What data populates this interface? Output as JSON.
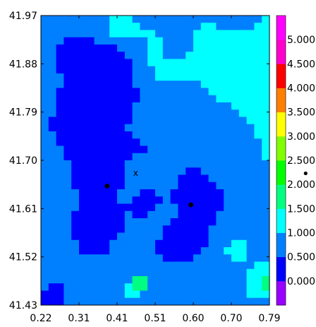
{
  "chart_data": {
    "type": "heatmap",
    "title": "",
    "xlabel": "",
    "ylabel": "",
    "x_ticks": [
      "0.22",
      "0.31",
      "0.41",
      "0.51",
      "0.60",
      "0.70",
      "0.79"
    ],
    "y_ticks": [
      "41.43",
      "41.52",
      "41.61",
      "41.70",
      "41.79",
      "41.88",
      "41.97"
    ],
    "xlim": [
      0.22,
      0.79
    ],
    "ylim": [
      41.43,
      41.97
    ],
    "grid": false,
    "colorbar": {
      "labels": [
        "0.000",
        "0.500",
        "1.000",
        "1.500",
        "2.000",
        "2.500",
        "3.000",
        "3.500",
        "4.000",
        "4.500",
        "5.000"
      ],
      "colors": [
        "#9900ff",
        "#0000ff",
        "#0080ff",
        "#00ffff",
        "#00ff80",
        "#00ff00",
        "#80ff00",
        "#ffff00",
        "#ff8000",
        "#ff0000",
        "#ff00cc",
        "#ff00ff"
      ]
    },
    "field": {
      "x_range": [
        0.22,
        0.79
      ],
      "y_range": [
        41.43,
        41.97
      ],
      "rows": [
        [
          2,
          2,
          2,
          2,
          2,
          2,
          2,
          2,
          2,
          3,
          3,
          3,
          2,
          2,
          2,
          2,
          2,
          2,
          2,
          2,
          2,
          2,
          2,
          2,
          2,
          2,
          2,
          2,
          2,
          3
        ],
        [
          2,
          2,
          2,
          2,
          2,
          2,
          2,
          2,
          2,
          3,
          3,
          3,
          3,
          2,
          2,
          2,
          2,
          2,
          2,
          2,
          2,
          3,
          3,
          2,
          2,
          2,
          2,
          2,
          3,
          3
        ],
        [
          2,
          2,
          2,
          2,
          2,
          2,
          2,
          2,
          2,
          3,
          3,
          3,
          3,
          3,
          3,
          2,
          2,
          2,
          2,
          2,
          3,
          3,
          3,
          3,
          3,
          3,
          3,
          3,
          3,
          3
        ],
        [
          2,
          2,
          2,
          1,
          1,
          1,
          1,
          2,
          2,
          2,
          2,
          2,
          2,
          2,
          3,
          3,
          2,
          2,
          2,
          2,
          3,
          3,
          3,
          3,
          3,
          3,
          3,
          3,
          3,
          3
        ],
        [
          2,
          2,
          1,
          1,
          1,
          1,
          1,
          1,
          1,
          1,
          2,
          2,
          2,
          2,
          3,
          3,
          2,
          2,
          2,
          2,
          3,
          3,
          3,
          3,
          3,
          3,
          3,
          3,
          3,
          3
        ],
        [
          2,
          2,
          1,
          1,
          1,
          1,
          1,
          1,
          1,
          1,
          1,
          2,
          2,
          2,
          3,
          3,
          2,
          2,
          2,
          3,
          3,
          3,
          3,
          3,
          3,
          3,
          3,
          3,
          3,
          3
        ],
        [
          2,
          2,
          1,
          1,
          1,
          1,
          1,
          1,
          1,
          1,
          1,
          1,
          2,
          2,
          3,
          3,
          3,
          3,
          3,
          3,
          3,
          3,
          3,
          3,
          3,
          3,
          3,
          3,
          3,
          3
        ],
        [
          2,
          2,
          1,
          1,
          1,
          1,
          1,
          1,
          1,
          1,
          1,
          1,
          2,
          2,
          2,
          3,
          3,
          3,
          3,
          3,
          3,
          3,
          3,
          3,
          3,
          3,
          3,
          3,
          3,
          3
        ],
        [
          2,
          2,
          2,
          1,
          1,
          1,
          1,
          1,
          1,
          1,
          1,
          1,
          2,
          2,
          2,
          3,
          3,
          3,
          3,
          3,
          3,
          3,
          3,
          3,
          3,
          3,
          3,
          3,
          3,
          3
        ],
        [
          2,
          2,
          2,
          1,
          1,
          1,
          1,
          1,
          1,
          1,
          1,
          1,
          2,
          2,
          2,
          2,
          2,
          2,
          2,
          2,
          2,
          3,
          3,
          3,
          3,
          3,
          3,
          3,
          3,
          3
        ],
        [
          2,
          2,
          1,
          1,
          1,
          1,
          1,
          1,
          1,
          1,
          1,
          1,
          1,
          2,
          2,
          2,
          2,
          2,
          2,
          2,
          2,
          2,
          3,
          3,
          3,
          3,
          3,
          3,
          3,
          3
        ],
        [
          2,
          2,
          1,
          1,
          1,
          1,
          1,
          1,
          1,
          1,
          1,
          1,
          1,
          2,
          2,
          2,
          2,
          2,
          2,
          2,
          2,
          2,
          2,
          3,
          3,
          3,
          3,
          3,
          3,
          3
        ],
        [
          2,
          2,
          1,
          1,
          1,
          1,
          1,
          1,
          1,
          1,
          1,
          1,
          2,
          2,
          2,
          2,
          2,
          2,
          2,
          2,
          2,
          2,
          2,
          2,
          2,
          3,
          3,
          3,
          3,
          3
        ],
        [
          2,
          2,
          1,
          1,
          1,
          1,
          1,
          1,
          1,
          1,
          1,
          1,
          2,
          2,
          2,
          2,
          2,
          2,
          2,
          2,
          2,
          2,
          2,
          2,
          2,
          2,
          3,
          3,
          3,
          3
        ],
        [
          2,
          1,
          1,
          1,
          1,
          1,
          1,
          1,
          1,
          1,
          1,
          1,
          2,
          2,
          2,
          2,
          2,
          2,
          2,
          2,
          2,
          2,
          2,
          2,
          2,
          2,
          2,
          3,
          3,
          3
        ],
        [
          2,
          1,
          1,
          1,
          1,
          1,
          1,
          1,
          1,
          1,
          1,
          2,
          2,
          2,
          2,
          2,
          2,
          2,
          2,
          2,
          2,
          2,
          2,
          2,
          2,
          2,
          2,
          2,
          3,
          3
        ],
        [
          2,
          2,
          1,
          1,
          1,
          1,
          1,
          1,
          1,
          1,
          1,
          1,
          2,
          2,
          2,
          2,
          2,
          2,
          2,
          2,
          2,
          2,
          2,
          2,
          2,
          2,
          2,
          2,
          3,
          3
        ],
        [
          2,
          2,
          1,
          1,
          1,
          1,
          1,
          1,
          1,
          1,
          1,
          1,
          1,
          2,
          2,
          2,
          2,
          2,
          2,
          2,
          2,
          2,
          2,
          2,
          2,
          2,
          2,
          2,
          2,
          3
        ],
        [
          2,
          2,
          2,
          1,
          1,
          1,
          1,
          1,
          1,
          1,
          1,
          1,
          1,
          1,
          2,
          2,
          2,
          2,
          2,
          2,
          2,
          2,
          2,
          2,
          2,
          2,
          2,
          2,
          2,
          3
        ],
        [
          2,
          2,
          2,
          1,
          1,
          1,
          1,
          1,
          1,
          1,
          1,
          1,
          2,
          2,
          2,
          2,
          2,
          2,
          2,
          2,
          2,
          2,
          2,
          2,
          2,
          2,
          2,
          2,
          2,
          3
        ],
        [
          2,
          2,
          2,
          2,
          1,
          1,
          1,
          1,
          1,
          1,
          1,
          2,
          2,
          2,
          2,
          2,
          2,
          2,
          2,
          2,
          2,
          2,
          2,
          2,
          2,
          2,
          2,
          2,
          2,
          2
        ],
        [
          2,
          2,
          2,
          2,
          1,
          1,
          1,
          1,
          1,
          1,
          1,
          2,
          2,
          2,
          2,
          2,
          2,
          2,
          2,
          1,
          1,
          2,
          2,
          2,
          2,
          2,
          2,
          2,
          2,
          2
        ],
        [
          2,
          2,
          2,
          2,
          1,
          1,
          1,
          1,
          1,
          1,
          1,
          2,
          2,
          2,
          2,
          2,
          2,
          2,
          1,
          1,
          1,
          1,
          2,
          2,
          2,
          2,
          2,
          2,
          2,
          2
        ],
        [
          2,
          2,
          2,
          2,
          1,
          1,
          1,
          1,
          1,
          1,
          1,
          2,
          2,
          2,
          2,
          2,
          2,
          2,
          1,
          1,
          1,
          1,
          1,
          2,
          2,
          2,
          2,
          2,
          2,
          2
        ],
        [
          2,
          2,
          2,
          2,
          2,
          1,
          1,
          1,
          1,
          1,
          2,
          2,
          2,
          1,
          1,
          2,
          2,
          1,
          1,
          1,
          1,
          1,
          1,
          1,
          2,
          2,
          2,
          2,
          2,
          2
        ],
        [
          2,
          2,
          2,
          2,
          2,
          1,
          1,
          1,
          1,
          1,
          2,
          2,
          1,
          1,
          1,
          1,
          2,
          1,
          1,
          1,
          1,
          1,
          1,
          1,
          2,
          2,
          2,
          2,
          2,
          2
        ],
        [
          2,
          2,
          2,
          2,
          2,
          1,
          1,
          1,
          1,
          1,
          1,
          1,
          1,
          1,
          1,
          2,
          2,
          2,
          1,
          1,
          1,
          1,
          1,
          1,
          2,
          2,
          2,
          2,
          2,
          2
        ],
        [
          2,
          2,
          2,
          2,
          1,
          1,
          1,
          1,
          1,
          1,
          1,
          2,
          1,
          1,
          2,
          2,
          2,
          2,
          1,
          1,
          1,
          1,
          1,
          2,
          2,
          2,
          2,
          2,
          2,
          2
        ],
        [
          2,
          2,
          2,
          2,
          1,
          1,
          1,
          1,
          1,
          1,
          1,
          2,
          2,
          2,
          2,
          2,
          2,
          1,
          1,
          1,
          1,
          1,
          1,
          2,
          2,
          2,
          2,
          2,
          2,
          2
        ],
        [
          2,
          2,
          2,
          2,
          1,
          1,
          1,
          1,
          1,
          1,
          1,
          2,
          2,
          2,
          2,
          2,
          1,
          1,
          1,
          1,
          1,
          1,
          2,
          2,
          2,
          2,
          2,
          2,
          2,
          2
        ],
        [
          2,
          2,
          2,
          2,
          1,
          1,
          1,
          1,
          1,
          1,
          2,
          2,
          2,
          2,
          2,
          2,
          1,
          1,
          1,
          1,
          1,
          1,
          2,
          2,
          2,
          2,
          2,
          2,
          2,
          2
        ],
        [
          2,
          2,
          2,
          2,
          2,
          1,
          1,
          1,
          1,
          2,
          2,
          2,
          2,
          2,
          2,
          1,
          1,
          1,
          1,
          1,
          1,
          1,
          2,
          2,
          2,
          3,
          3,
          2,
          2,
          2
        ],
        [
          2,
          2,
          2,
          2,
          2,
          1,
          1,
          1,
          1,
          2,
          2,
          2,
          2,
          2,
          2,
          1,
          1,
          1,
          1,
          1,
          1,
          2,
          2,
          2,
          3,
          3,
          3,
          2,
          2,
          2
        ],
        [
          2,
          2,
          2,
          2,
          2,
          2,
          2,
          2,
          2,
          2,
          2,
          2,
          2,
          2,
          2,
          2,
          1,
          1,
          1,
          1,
          2,
          2,
          2,
          2,
          2,
          3,
          3,
          2,
          2,
          2
        ],
        [
          2,
          2,
          2,
          2,
          2,
          2,
          2,
          2,
          2,
          2,
          2,
          2,
          2,
          2,
          2,
          2,
          2,
          2,
          2,
          2,
          2,
          2,
          2,
          2,
          2,
          2,
          2,
          2,
          3,
          3
        ],
        [
          2,
          2,
          2,
          2,
          2,
          2,
          2,
          2,
          2,
          2,
          2,
          2,
          2,
          2,
          2,
          2,
          2,
          2,
          2,
          2,
          2,
          2,
          2,
          2,
          2,
          2,
          2,
          3,
          3,
          3
        ],
        [
          2,
          2,
          2,
          2,
          2,
          2,
          2,
          2,
          2,
          2,
          2,
          2,
          4,
          4,
          2,
          2,
          2,
          2,
          2,
          2,
          2,
          2,
          2,
          2,
          2,
          2,
          2,
          3,
          3,
          4
        ],
        [
          2,
          1,
          1,
          2,
          2,
          2,
          2,
          2,
          2,
          2,
          2,
          3,
          4,
          4,
          2,
          2,
          2,
          2,
          2,
          2,
          2,
          2,
          2,
          2,
          2,
          2,
          2,
          3,
          3,
          4
        ],
        [
          1,
          1,
          1,
          2,
          2,
          2,
          2,
          2,
          2,
          2,
          2,
          3,
          3,
          2,
          2,
          2,
          2,
          2,
          2,
          2,
          2,
          2,
          2,
          2,
          2,
          2,
          2,
          3,
          3,
          3
        ],
        [
          1,
          1,
          1,
          2,
          2,
          2,
          2,
          2,
          2,
          2,
          2,
          2,
          2,
          2,
          2,
          2,
          2,
          2,
          2,
          2,
          2,
          2,
          2,
          2,
          2,
          2,
          2,
          2,
          2,
          2
        ]
      ]
    },
    "markers": [
      {
        "x": 0.385,
        "y": 41.652,
        "symbol": "dot"
      },
      {
        "x": 0.594,
        "y": 41.617,
        "symbol": "dot"
      },
      {
        "x": 0.457,
        "y": 41.676,
        "symbol": "x"
      }
    ],
    "outside_marker": "•",
    "marker_cross_label": "x"
  }
}
